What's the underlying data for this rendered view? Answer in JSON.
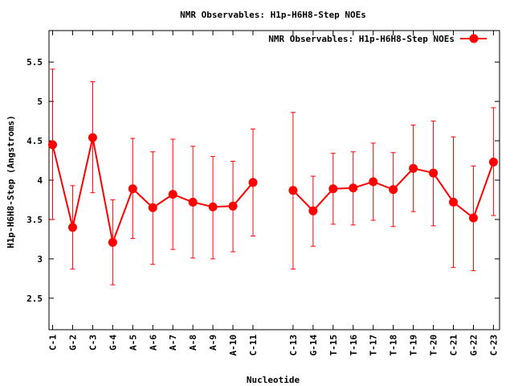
{
  "chart_data": {
    "type": "line",
    "title": "NMR Observables: H1p-H6H8-Step NOEs",
    "xlabel": "Nucleotide",
    "ylabel": "H1p-H6H8-Step (Angstroms)",
    "ylim": [
      2.1,
      5.9
    ],
    "yticks": [
      "2.5",
      "3",
      "3.5",
      "4",
      "4.5",
      "5",
      "5.5"
    ],
    "grid": false,
    "legend_position": "top-right",
    "series": [
      {
        "name": "NMR Observables: H1p-H6H8-Step NOEs",
        "color": "#ff0000",
        "points": [
          {
            "label": "C-1",
            "x": 1,
            "y": 4.45,
            "err_low": 3.5,
            "err_high": 5.41
          },
          {
            "label": "G-2",
            "x": 2,
            "y": 3.4,
            "err_low": 2.87,
            "err_high": 3.93
          },
          {
            "label": "C-3",
            "x": 3,
            "y": 4.54,
            "err_low": 3.84,
            "err_high": 5.25
          },
          {
            "label": "G-4",
            "x": 4,
            "y": 3.21,
            "err_low": 2.67,
            "err_high": 3.75
          },
          {
            "label": "A-5",
            "x": 5,
            "y": 3.89,
            "err_low": 3.26,
            "err_high": 4.53
          },
          {
            "label": "A-6",
            "x": 6,
            "y": 3.65,
            "err_low": 2.93,
            "err_high": 4.36
          },
          {
            "label": "A-7",
            "x": 7,
            "y": 3.82,
            "err_low": 3.12,
            "err_high": 4.52
          },
          {
            "label": "A-8",
            "x": 8,
            "y": 3.72,
            "err_low": 3.01,
            "err_high": 4.43
          },
          {
            "label": "A-9",
            "x": 9,
            "y": 3.66,
            "err_low": 3.0,
            "err_high": 4.3
          },
          {
            "label": "A-10",
            "x": 10,
            "y": 3.67,
            "err_low": 3.09,
            "err_high": 4.24
          },
          {
            "label": "C-11",
            "x": 11,
            "y": 3.97,
            "err_low": 3.29,
            "err_high": 4.65
          },
          {
            "label": "C-13",
            "x": 13,
            "y": 3.87,
            "err_low": 2.87,
            "err_high": 4.86
          },
          {
            "label": "G-14",
            "x": 14,
            "y": 3.61,
            "err_low": 3.16,
            "err_high": 4.05
          },
          {
            "label": "T-15",
            "x": 15,
            "y": 3.89,
            "err_low": 3.44,
            "err_high": 4.34
          },
          {
            "label": "T-16",
            "x": 16,
            "y": 3.9,
            "err_low": 3.43,
            "err_high": 4.36
          },
          {
            "label": "T-17",
            "x": 17,
            "y": 3.98,
            "err_low": 3.49,
            "err_high": 4.47
          },
          {
            "label": "T-18",
            "x": 18,
            "y": 3.88,
            "err_low": 3.41,
            "err_high": 4.35
          },
          {
            "label": "T-19",
            "x": 19,
            "y": 4.15,
            "err_low": 3.6,
            "err_high": 4.7
          },
          {
            "label": "T-20",
            "x": 20,
            "y": 4.09,
            "err_low": 3.42,
            "err_high": 4.75
          },
          {
            "label": "C-21",
            "x": 21,
            "y": 3.72,
            "err_low": 2.89,
            "err_high": 4.55
          },
          {
            "label": "G-22",
            "x": 22,
            "y": 3.52,
            "err_low": 2.85,
            "err_high": 4.18
          },
          {
            "label": "C-23",
            "x": 23,
            "y": 4.23,
            "err_low": 3.55,
            "err_high": 4.92
          }
        ]
      }
    ]
  }
}
